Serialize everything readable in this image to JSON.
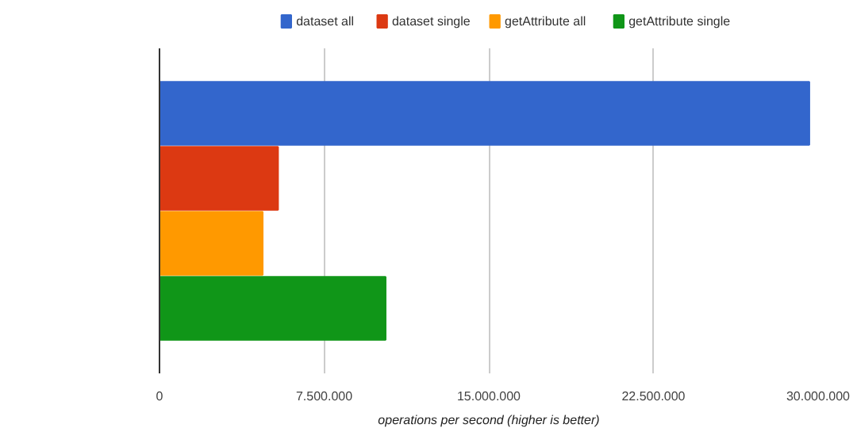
{
  "chart_data": {
    "type": "bar",
    "orientation": "horizontal",
    "categories": [
      null
    ],
    "xlabel": "operations per second (higher is better)",
    "series": [
      {
        "name": "dataset all",
        "color": "#3366cc",
        "values": [
          29600000
        ]
      },
      {
        "name": "dataset single",
        "color": "#dc3912",
        "values": [
          5400000
        ]
      },
      {
        "name": "getAttribute all",
        "color": "#ff9900",
        "values": [
          4700000
        ]
      },
      {
        "name": "getAttribute single",
        "color": "#109618",
        "values": [
          10300000
        ]
      }
    ],
    "xlim": [
      0,
      30000000
    ],
    "xticks": [
      0,
      {
        "value": 7500000,
        "label": "7.500.000"
      },
      {
        "value": 15000000,
        "label": "15.000.000"
      },
      {
        "value": 22500000,
        "label": "22.500.000"
      },
      {
        "value": 30000000,
        "label": "30.000.000"
      }
    ],
    "grid": "x",
    "legend": "top"
  }
}
